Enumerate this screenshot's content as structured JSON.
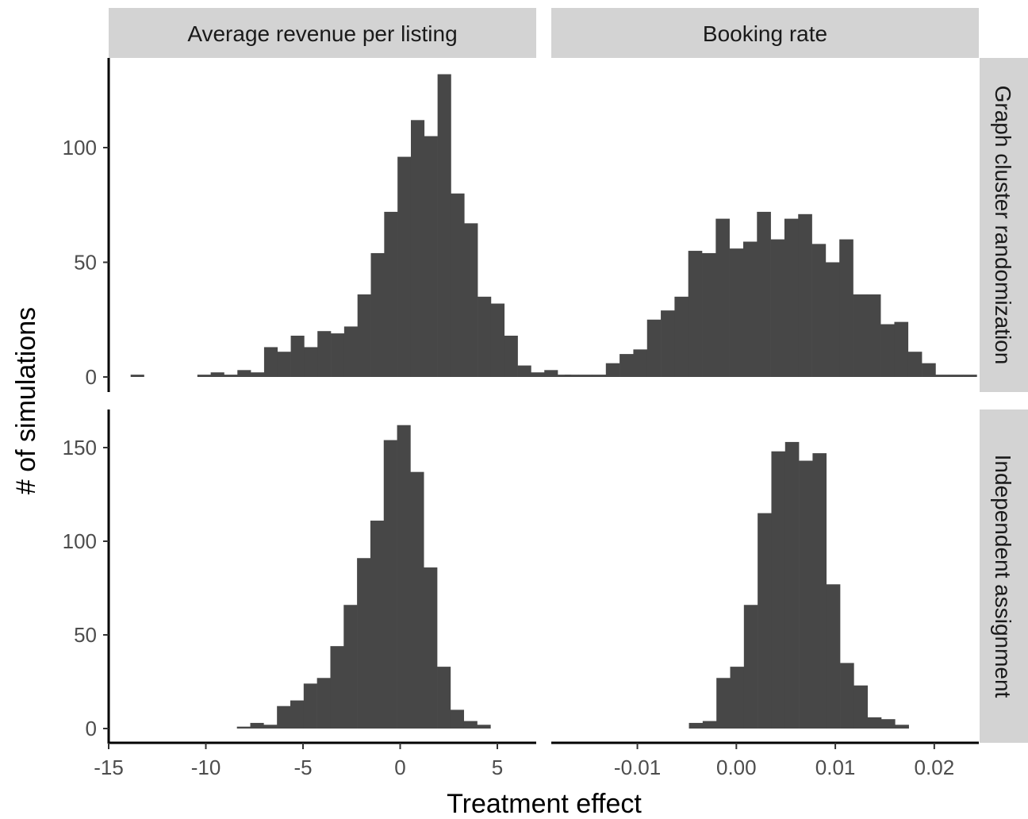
{
  "chart_data": {
    "type": "histogram",
    "xlabel": "Treatment effect",
    "ylabel": "# of simulations",
    "columns": [
      {
        "key": "revenue",
        "title": "Average revenue per listing",
        "xlim": [
          -15,
          7
        ],
        "xticks": [
          -15,
          -10,
          -5,
          0,
          5
        ],
        "xtick_labels": [
          "-15",
          "-10",
          "-5",
          "0",
          "5"
        ]
      },
      {
        "key": "booking",
        "title": "Booking rate",
        "xlim": [
          -0.0187,
          0.0245
        ],
        "xticks": [
          -0.01,
          0.0,
          0.01,
          0.02
        ],
        "xtick_labels": [
          "-0.01",
          "0.00",
          "0.01",
          "0.02"
        ]
      }
    ],
    "rows": [
      {
        "key": "graph",
        "title": "Graph cluster randomization",
        "ylim": [
          0,
          132
        ],
        "yticks": [
          0,
          50,
          100
        ],
        "ytick_labels": [
          "0",
          "50",
          "100"
        ]
      },
      {
        "key": "independent",
        "title": "Independent assignment",
        "ylim": [
          0,
          162
        ],
        "yticks": [
          0,
          50,
          100,
          150
        ],
        "ytick_labels": [
          "0",
          "50",
          "100",
          "150"
        ]
      }
    ],
    "panels": [
      {
        "row": "graph",
        "col": "revenue",
        "x_start": -13.87,
        "bin_width": 0.6867,
        "counts": [
          1,
          0,
          0,
          0,
          0,
          1,
          2,
          1,
          3,
          2,
          13,
          11,
          18,
          13,
          20,
          19,
          22,
          36,
          54,
          72,
          96,
          112,
          105,
          132,
          80,
          67,
          35,
          32,
          18,
          5,
          2,
          3,
          1
        ]
      },
      {
        "row": "graph",
        "col": "booking",
        "x_start": -0.01735,
        "bin_width": 0.001388,
        "counts": [
          1,
          1,
          1,
          6,
          10,
          12,
          25,
          29,
          35,
          55,
          54,
          69,
          56,
          59,
          72,
          60,
          69,
          71,
          58,
          50,
          60,
          36,
          36,
          23,
          24,
          11,
          6,
          1,
          1,
          1
        ]
      },
      {
        "row": "independent",
        "col": "revenue",
        "x_start": -8.4,
        "bin_width": 0.6867,
        "counts": [
          1,
          3,
          2,
          12,
          15,
          24,
          27,
          44,
          66,
          91,
          111,
          154,
          162,
          137,
          86,
          33,
          10,
          4,
          2
        ]
      },
      {
        "row": "independent",
        "col": "booking",
        "x_start": -0.00479,
        "bin_width": 0.001388,
        "counts": [
          3,
          4,
          27,
          33,
          66,
          115,
          148,
          153,
          143,
          147,
          77,
          35,
          23,
          6,
          5,
          2
        ]
      }
    ]
  }
}
